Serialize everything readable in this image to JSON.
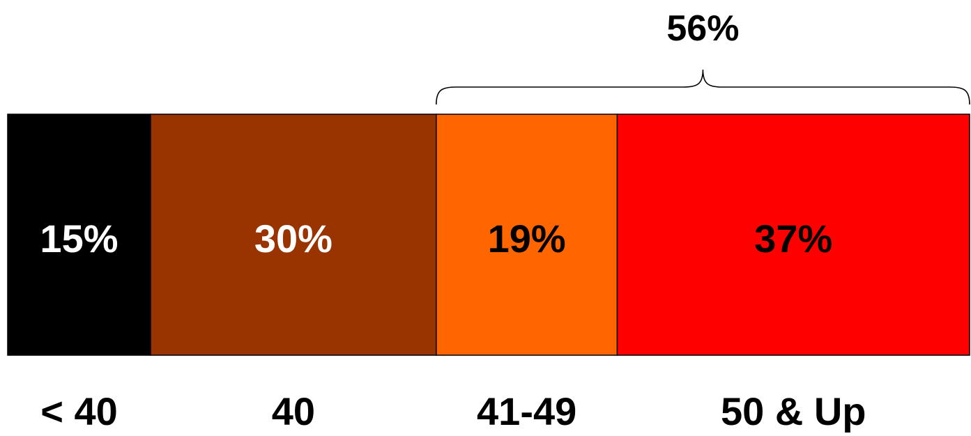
{
  "chart_data": {
    "type": "bar",
    "orientation": "horizontal-stacked",
    "categories": [
      "< 40",
      "40",
      "41-49",
      "50 & Up"
    ],
    "values": [
      15,
      30,
      19,
      37
    ],
    "value_labels": [
      "15%",
      "30%",
      "19%",
      "37%"
    ],
    "colors": [
      "#000000",
      "#993300",
      "#FF6600",
      "#FF0000"
    ],
    "label_colors": [
      "#ffffff",
      "#ffffff",
      "#000000",
      "#000000"
    ],
    "annotation": {
      "text": "56%",
      "spans_categories": [
        "41-49",
        "50 & Up"
      ]
    },
    "title": "",
    "xlabel": "",
    "ylabel": "",
    "grid": false
  }
}
